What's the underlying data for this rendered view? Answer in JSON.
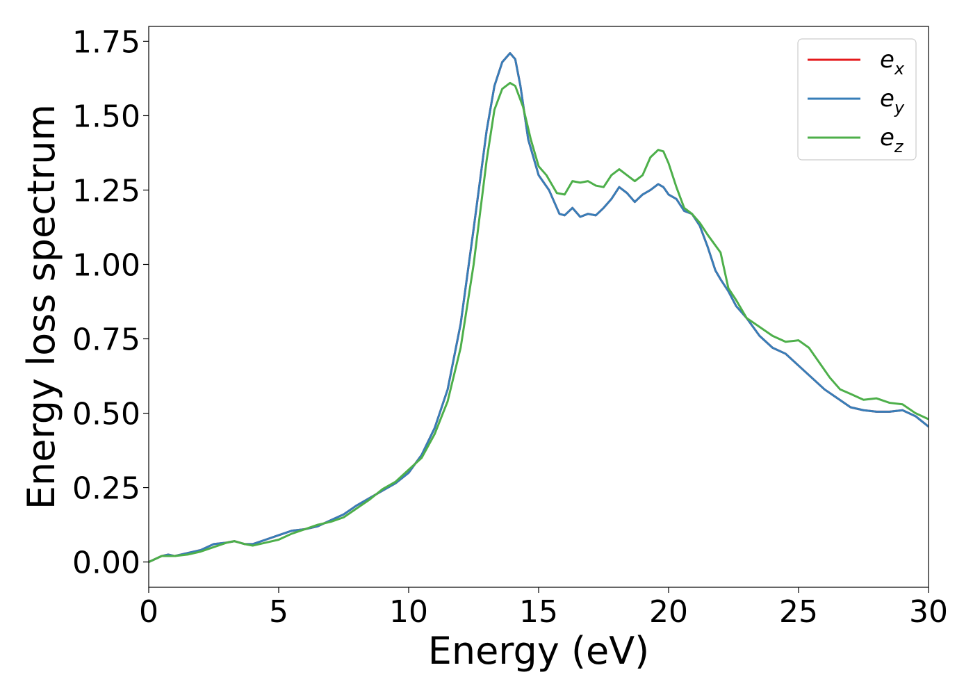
{
  "chart_data": {
    "type": "line",
    "xlabel": "Energy (eV)",
    "ylabel": "Energy loss spectrum",
    "xlim": [
      0,
      30
    ],
    "ylim": [
      -0.085,
      1.8
    ],
    "xticks": [
      0,
      5,
      10,
      15,
      20,
      25,
      30
    ],
    "xtick_labels": [
      "0",
      "5",
      "10",
      "15",
      "20",
      "25",
      "30"
    ],
    "yticks": [
      0.0,
      0.25,
      0.5,
      0.75,
      1.0,
      1.25,
      1.5,
      1.75
    ],
    "ytick_labels": [
      "0.00",
      "0.25",
      "0.50",
      "0.75",
      "1.00",
      "1.25",
      "1.50",
      "1.75"
    ],
    "grid": false,
    "legend_position": "top-right",
    "series": [
      {
        "name": "e_x",
        "label_base": "e",
        "label_sub": "x",
        "color": "#e41a1c",
        "x": [
          0,
          0.5,
          0.75,
          1,
          1.5,
          2,
          2.5,
          3,
          3.3,
          3.7,
          4,
          4.5,
          5,
          5.5,
          6,
          6.5,
          7,
          7.5,
          8,
          8.5,
          9,
          9.5,
          10,
          10.5,
          11,
          11.5,
          12,
          12.5,
          13,
          13.3,
          13.6,
          13.9,
          14.1,
          14.3,
          14.6,
          15,
          15.4,
          15.8,
          16,
          16.3,
          16.6,
          16.9,
          17.2,
          17.5,
          17.8,
          18.1,
          18.4,
          18.7,
          19,
          19.3,
          19.6,
          19.8,
          20,
          20.3,
          20.6,
          20.9,
          21.2,
          21.5,
          21.8,
          22,
          22.3,
          22.6,
          23,
          23.5,
          24,
          24.5,
          25,
          25.5,
          26,
          26.5,
          27,
          27.5,
          28,
          28.5,
          29,
          29.5,
          30
        ],
        "y": [
          0.0,
          0.02,
          0.025,
          0.02,
          0.03,
          0.04,
          0.06,
          0.065,
          0.07,
          0.06,
          0.06,
          0.075,
          0.09,
          0.105,
          0.11,
          0.12,
          0.14,
          0.16,
          0.19,
          0.215,
          0.24,
          0.265,
          0.3,
          0.36,
          0.45,
          0.58,
          0.8,
          1.12,
          1.45,
          1.6,
          1.68,
          1.71,
          1.69,
          1.6,
          1.42,
          1.3,
          1.25,
          1.17,
          1.165,
          1.19,
          1.16,
          1.17,
          1.165,
          1.19,
          1.22,
          1.26,
          1.24,
          1.21,
          1.235,
          1.25,
          1.27,
          1.26,
          1.235,
          1.22,
          1.18,
          1.17,
          1.13,
          1.06,
          0.98,
          0.95,
          0.91,
          0.86,
          0.82,
          0.76,
          0.72,
          0.7,
          0.66,
          0.62,
          0.58,
          0.55,
          0.52,
          0.51,
          0.505,
          0.505,
          0.51,
          0.49,
          0.455
        ]
      },
      {
        "name": "e_y",
        "label_base": "e",
        "label_sub": "y",
        "color": "#377eb8",
        "x": [
          0,
          0.5,
          0.75,
          1,
          1.5,
          2,
          2.5,
          3,
          3.3,
          3.7,
          4,
          4.5,
          5,
          5.5,
          6,
          6.5,
          7,
          7.5,
          8,
          8.5,
          9,
          9.5,
          10,
          10.5,
          11,
          11.5,
          12,
          12.5,
          13,
          13.3,
          13.6,
          13.9,
          14.1,
          14.3,
          14.6,
          15,
          15.4,
          15.8,
          16,
          16.3,
          16.6,
          16.9,
          17.2,
          17.5,
          17.8,
          18.1,
          18.4,
          18.7,
          19,
          19.3,
          19.6,
          19.8,
          20,
          20.3,
          20.6,
          20.9,
          21.2,
          21.5,
          21.8,
          22,
          22.3,
          22.6,
          23,
          23.5,
          24,
          24.5,
          25,
          25.5,
          26,
          26.5,
          27,
          27.5,
          28,
          28.5,
          29,
          29.5,
          30
        ],
        "y": [
          0.0,
          0.02,
          0.025,
          0.02,
          0.03,
          0.04,
          0.06,
          0.065,
          0.07,
          0.06,
          0.06,
          0.075,
          0.09,
          0.105,
          0.11,
          0.12,
          0.14,
          0.16,
          0.19,
          0.215,
          0.24,
          0.265,
          0.3,
          0.36,
          0.45,
          0.58,
          0.8,
          1.12,
          1.45,
          1.6,
          1.68,
          1.71,
          1.69,
          1.6,
          1.42,
          1.3,
          1.25,
          1.17,
          1.165,
          1.19,
          1.16,
          1.17,
          1.165,
          1.19,
          1.22,
          1.26,
          1.24,
          1.21,
          1.235,
          1.25,
          1.27,
          1.26,
          1.235,
          1.22,
          1.18,
          1.17,
          1.13,
          1.06,
          0.98,
          0.95,
          0.91,
          0.86,
          0.82,
          0.76,
          0.72,
          0.7,
          0.66,
          0.62,
          0.58,
          0.55,
          0.52,
          0.51,
          0.505,
          0.505,
          0.51,
          0.49,
          0.455
        ]
      },
      {
        "name": "e_z",
        "label_base": "e",
        "label_sub": "z",
        "color": "#4daf4a",
        "x": [
          0,
          0.5,
          0.75,
          1,
          1.5,
          2,
          2.5,
          3,
          3.3,
          3.7,
          4,
          4.5,
          5,
          5.5,
          6,
          6.5,
          7,
          7.5,
          8,
          8.5,
          9,
          9.5,
          10,
          10.5,
          11,
          11.5,
          12,
          12.5,
          13,
          13.3,
          13.6,
          13.9,
          14.1,
          14.4,
          14.7,
          15,
          15.3,
          15.7,
          16,
          16.3,
          16.6,
          16.9,
          17.2,
          17.5,
          17.8,
          18.1,
          18.4,
          18.7,
          19,
          19.3,
          19.6,
          19.8,
          20,
          20.3,
          20.6,
          20.9,
          21.2,
          21.5,
          22,
          22.3,
          22.6,
          23,
          23.5,
          24,
          24.5,
          25,
          25.4,
          25.8,
          26.2,
          26.6,
          27,
          27.5,
          28,
          28.5,
          29,
          29.5,
          30
        ],
        "y": [
          0.0,
          0.02,
          0.02,
          0.02,
          0.025,
          0.035,
          0.05,
          0.065,
          0.07,
          0.06,
          0.055,
          0.065,
          0.075,
          0.095,
          0.11,
          0.125,
          0.135,
          0.15,
          0.18,
          0.21,
          0.245,
          0.27,
          0.31,
          0.35,
          0.43,
          0.54,
          0.72,
          1.0,
          1.35,
          1.52,
          1.59,
          1.61,
          1.6,
          1.53,
          1.42,
          1.33,
          1.3,
          1.24,
          1.235,
          1.28,
          1.275,
          1.28,
          1.265,
          1.26,
          1.3,
          1.32,
          1.3,
          1.28,
          1.3,
          1.36,
          1.385,
          1.38,
          1.34,
          1.26,
          1.19,
          1.17,
          1.14,
          1.1,
          1.04,
          0.92,
          0.88,
          0.82,
          0.79,
          0.76,
          0.74,
          0.745,
          0.72,
          0.67,
          0.62,
          0.58,
          0.565,
          0.545,
          0.55,
          0.535,
          0.53,
          0.5,
          0.48
        ]
      }
    ]
  }
}
